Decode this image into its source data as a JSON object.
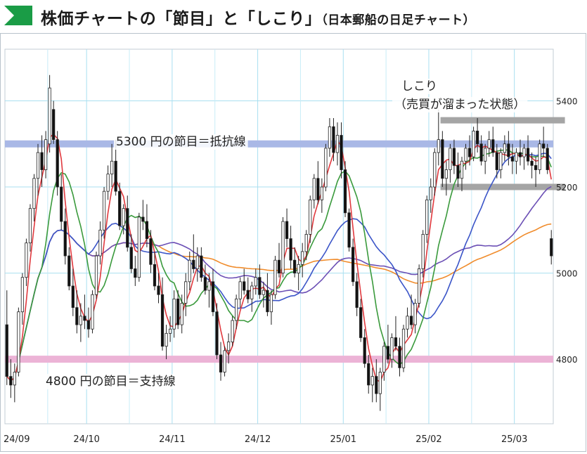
{
  "header": {
    "title_main": "株価チャートの「節目」と「しこり」",
    "title_sub": "（日本郵船の日足チャート）",
    "accent_color": "#1a9c46"
  },
  "chart_data": {
    "type": "candlestick",
    "title": "株価チャートの「節目」と「しこり」（日本郵船の日足チャート）",
    "ylim": [
      4650,
      5520
    ],
    "y_ticks": [
      "5400",
      "5200",
      "5000",
      "4800"
    ],
    "x_ticks": [
      "24/09",
      "24/10",
      "24/11",
      "24/12",
      "25/01",
      "25/02",
      "25/03"
    ],
    "grid": true,
    "colors": {
      "up": "#ffffff",
      "down": "#111111",
      "ma_red": "#e0393e",
      "ma_green": "#3a9a3c",
      "ma_blue": "#3b55c8",
      "ma_purple": "#6b4fb5",
      "ma_orange": "#f08c2c",
      "resistance": "#a9b8e6",
      "support": "#ecb3d6",
      "shikori": "#a5a5a5"
    },
    "annotations": {
      "resistance_label": "5300 円の節目＝抵抗線",
      "resistance_value": 5300,
      "support_label": "4800 円の節目＝支持線",
      "support_value": 4800,
      "shikori_label_1": "しこり",
      "shikori_label_2": "（売買が溜まった状態）",
      "shikori_upper": 5355,
      "shikori_lower": 5200
    },
    "candles": [
      [
        4880,
        4960,
        4740,
        4760
      ],
      [
        4760,
        4800,
        4710,
        4740
      ],
      [
        4740,
        4790,
        4700,
        4770
      ],
      [
        4770,
        4920,
        4760,
        4910
      ],
      [
        4910,
        5000,
        4880,
        4990
      ],
      [
        4990,
        5080,
        4970,
        5070
      ],
      [
        5070,
        5160,
        5050,
        5150
      ],
      [
        5150,
        5230,
        5120,
        5220
      ],
      [
        5220,
        5300,
        5180,
        5280
      ],
      [
        5280,
        5320,
        5200,
        5240
      ],
      [
        5240,
        5330,
        5220,
        5310
      ],
      [
        5300,
        5460,
        5280,
        5430
      ],
      [
        5380,
        5400,
        5300,
        5310
      ],
      [
        5310,
        5330,
        5180,
        5200
      ],
      [
        5200,
        5230,
        5100,
        5120
      ],
      [
        5120,
        5150,
        5020,
        5040
      ],
      [
        5040,
        5060,
        4960,
        4970
      ],
      [
        4970,
        5010,
        4900,
        4920
      ],
      [
        4920,
        4960,
        4860,
        4880
      ],
      [
        4880,
        4930,
        4840,
        4900
      ],
      [
        4900,
        4950,
        4870,
        4890
      ],
      [
        4890,
        4920,
        4850,
        4870
      ],
      [
        4870,
        4960,
        4860,
        4950
      ],
      [
        4950,
        5050,
        4940,
        5040
      ],
      [
        5040,
        5120,
        5020,
        5100
      ],
      [
        5100,
        5200,
        5080,
        5190
      ],
      [
        5190,
        5250,
        5170,
        5230
      ],
      [
        5230,
        5300,
        5200,
        5260
      ],
      [
        5260,
        5310,
        5180,
        5190
      ],
      [
        5190,
        5210,
        5100,
        5110
      ],
      [
        5110,
        5160,
        5090,
        5150
      ],
      [
        5150,
        5180,
        5050,
        5060
      ],
      [
        5060,
        5090,
        5000,
        5010
      ],
      [
        5010,
        5040,
        4970,
        4990
      ],
      [
        4990,
        5140,
        4980,
        5130
      ],
      [
        5130,
        5170,
        5100,
        5120
      ],
      [
        5120,
        5160,
        5060,
        5080
      ],
      [
        5080,
        5100,
        5000,
        5020
      ],
      [
        5020,
        5050,
        4960,
        4970
      ],
      [
        4970,
        5000,
        4930,
        4950
      ],
      [
        4950,
        4990,
        4820,
        4830
      ],
      [
        4830,
        4880,
        4800,
        4860
      ],
      [
        4860,
        4900,
        4840,
        4870
      ],
      [
        4870,
        4960,
        4850,
        4940
      ],
      [
        4940,
        4960,
        4870,
        4880
      ],
      [
        4880,
        4950,
        4860,
        4930
      ],
      [
        4930,
        5000,
        4900,
        4980
      ],
      [
        4980,
        5050,
        4960,
        5030
      ],
      [
        5030,
        5090,
        5000,
        5010
      ],
      [
        5010,
        5060,
        4980,
        5040
      ],
      [
        5040,
        5060,
        4980,
        4990
      ],
      [
        4990,
        5020,
        4950,
        4960
      ],
      [
        4960,
        5000,
        4920,
        4980
      ],
      [
        4980,
        5010,
        4900,
        4910
      ],
      [
        4910,
        4930,
        4800,
        4810
      ],
      [
        4810,
        4840,
        4750,
        4770
      ],
      [
        4770,
        4830,
        4760,
        4820
      ],
      [
        4820,
        4860,
        4790,
        4840
      ],
      [
        4840,
        4900,
        4830,
        4890
      ],
      [
        4890,
        4950,
        4870,
        4940
      ],
      [
        4940,
        4990,
        4920,
        4980
      ],
      [
        4980,
        5010,
        4950,
        4960
      ],
      [
        4960,
        4990,
        4930,
        4940
      ],
      [
        4940,
        4980,
        4910,
        4970
      ],
      [
        4970,
        5010,
        4950,
        4990
      ],
      [
        4990,
        5020,
        4940,
        4950
      ],
      [
        4950,
        4980,
        4920,
        4960
      ],
      [
        4960,
        5000,
        4900,
        4910
      ],
      [
        4910,
        4960,
        4880,
        4950
      ],
      [
        4950,
        5040,
        4940,
        5030
      ],
      [
        5030,
        5070,
        4990,
        5000
      ],
      [
        5000,
        5130,
        4990,
        5120
      ],
      [
        5120,
        5150,
        5060,
        5080
      ],
      [
        5080,
        5110,
        5010,
        5030
      ],
      [
        5030,
        5060,
        4990,
        5000
      ],
      [
        5000,
        5040,
        4960,
        5020
      ],
      [
        5020,
        5070,
        4990,
        5050
      ],
      [
        5050,
        5100,
        5030,
        5090
      ],
      [
        5090,
        5180,
        5070,
        5170
      ],
      [
        5170,
        5230,
        5150,
        5220
      ],
      [
        5220,
        5260,
        5160,
        5170
      ],
      [
        5170,
        5220,
        5140,
        5200
      ],
      [
        5200,
        5300,
        5190,
        5290
      ],
      [
        5290,
        5360,
        5270,
        5340
      ],
      [
        5340,
        5360,
        5260,
        5280
      ],
      [
        5280,
        5350,
        5250,
        5320
      ],
      [
        5320,
        5350,
        5220,
        5240
      ],
      [
        5240,
        5260,
        5130,
        5140
      ],
      [
        5140,
        5150,
        5050,
        5060
      ],
      [
        5060,
        5080,
        4970,
        4980
      ],
      [
        4980,
        5000,
        4900,
        4920
      ],
      [
        4920,
        4940,
        4840,
        4850
      ],
      [
        4850,
        4870,
        4780,
        4790
      ],
      [
        4790,
        4810,
        4720,
        4740
      ],
      [
        4740,
        4780,
        4700,
        4760
      ],
      [
        4760,
        4800,
        4700,
        4720
      ],
      [
        4720,
        4780,
        4680,
        4770
      ],
      [
        4770,
        4840,
        4750,
        4830
      ],
      [
        4830,
        4880,
        4790,
        4800
      ],
      [
        4800,
        4860,
        4780,
        4850
      ],
      [
        4850,
        4900,
        4820,
        4830
      ],
      [
        4830,
        4850,
        4760,
        4780
      ],
      [
        4780,
        4880,
        4770,
        4870
      ],
      [
        4870,
        4920,
        4850,
        4900
      ],
      [
        4900,
        4950,
        4870,
        4880
      ],
      [
        4880,
        4940,
        4860,
        4930
      ],
      [
        4930,
        5020,
        4920,
        5010
      ],
      [
        5010,
        5100,
        4990,
        5090
      ],
      [
        5090,
        5180,
        5070,
        5170
      ],
      [
        5170,
        5220,
        5140,
        5200
      ],
      [
        5200,
        5290,
        5180,
        5280
      ],
      [
        5280,
        5380,
        5250,
        5310
      ],
      [
        5310,
        5330,
        5200,
        5220
      ],
      [
        5220,
        5260,
        5180,
        5240
      ],
      [
        5240,
        5300,
        5210,
        5290
      ],
      [
        5290,
        5310,
        5230,
        5250
      ],
      [
        5250,
        5280,
        5200,
        5220
      ],
      [
        5220,
        5270,
        5190,
        5260
      ],
      [
        5260,
        5300,
        5240,
        5290
      ],
      [
        5290,
        5320,
        5250,
        5270
      ],
      [
        5270,
        5340,
        5260,
        5330
      ],
      [
        5330,
        5360,
        5280,
        5300
      ],
      [
        5300,
        5320,
        5250,
        5260
      ],
      [
        5260,
        5300,
        5230,
        5290
      ],
      [
        5290,
        5330,
        5270,
        5310
      ],
      [
        5310,
        5340,
        5270,
        5280
      ],
      [
        5280,
        5300,
        5220,
        5240
      ],
      [
        5240,
        5290,
        5220,
        5280
      ],
      [
        5280,
        5320,
        5260,
        5300
      ],
      [
        5300,
        5330,
        5250,
        5270
      ],
      [
        5270,
        5300,
        5230,
        5260
      ],
      [
        5260,
        5290,
        5230,
        5280
      ],
      [
        5280,
        5310,
        5250,
        5270
      ],
      [
        5270,
        5300,
        5240,
        5290
      ],
      [
        5290,
        5320,
        5250,
        5260
      ],
      [
        5260,
        5280,
        5220,
        5250
      ],
      [
        5250,
        5270,
        5200,
        5240
      ],
      [
        5240,
        5310,
        5230,
        5300
      ],
      [
        5300,
        5340,
        5270,
        5290
      ],
      [
        5290,
        5300,
        5230,
        5240
      ],
      [
        5080,
        5100,
        5020,
        5040
      ]
    ]
  }
}
